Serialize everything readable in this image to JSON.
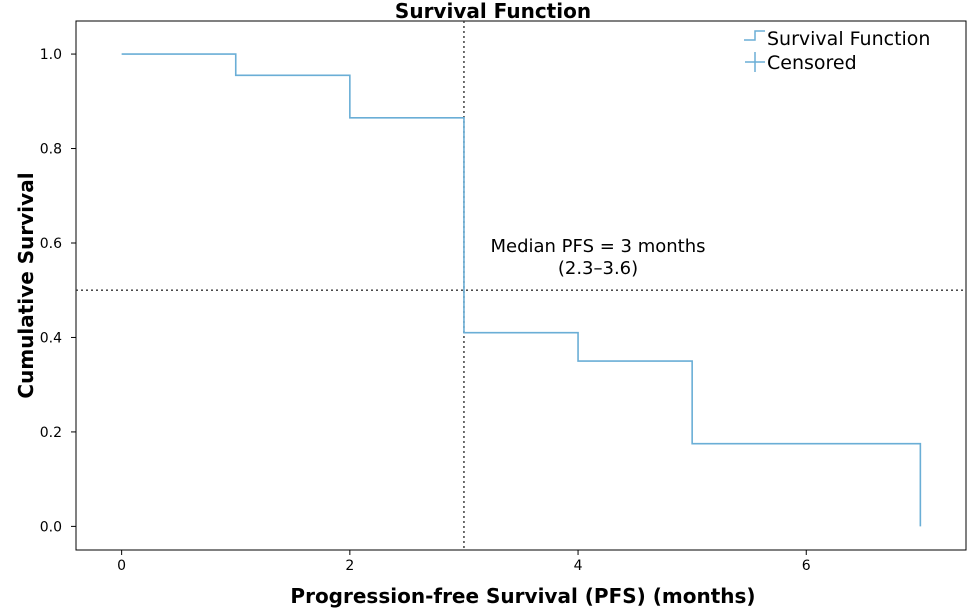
{
  "chart_data": {
    "type": "line",
    "subtype": "kaplan-meier-step",
    "title": "Survival Function",
    "xlabel": "Progression-free Survival (PFS) (months)",
    "ylabel": "Cumulative Survival",
    "xlim": [
      -0.4,
      7.4
    ],
    "ylim": [
      -0.05,
      1.07
    ],
    "xticks": [
      0,
      2,
      4,
      6
    ],
    "xtick_labels": [
      "0",
      "2",
      "4",
      "6"
    ],
    "yticks": [
      0.0,
      0.2,
      0.4,
      0.6,
      0.8,
      1.0
    ],
    "ytick_labels": [
      "0.0",
      "0.2",
      "0.4",
      "0.6",
      "0.8",
      "1.0"
    ],
    "series": [
      {
        "name": "Survival Function",
        "color": "#6aaed6",
        "steps": [
          {
            "x": 0,
            "y": 1.0
          },
          {
            "x": 1,
            "y": 0.955
          },
          {
            "x": 2,
            "y": 0.865
          },
          {
            "x": 3,
            "y": 0.41
          },
          {
            "x": 4,
            "y": 0.35
          },
          {
            "x": 5,
            "y": 0.175
          },
          {
            "x": 7,
            "y": 0.0
          }
        ]
      }
    ],
    "reference_lines": {
      "vertical_x": 3,
      "horizontal_y": 0.5,
      "style": "dotted",
      "color": "#333333"
    },
    "legend": {
      "position": "top-right",
      "items": [
        {
          "label": "Survival Function",
          "marker": "step"
        },
        {
          "label": "Censored",
          "marker": "plus"
        }
      ]
    },
    "annotation": {
      "line1": "Median PFS = 3 months",
      "line2": "(2.3–3.6)"
    }
  }
}
